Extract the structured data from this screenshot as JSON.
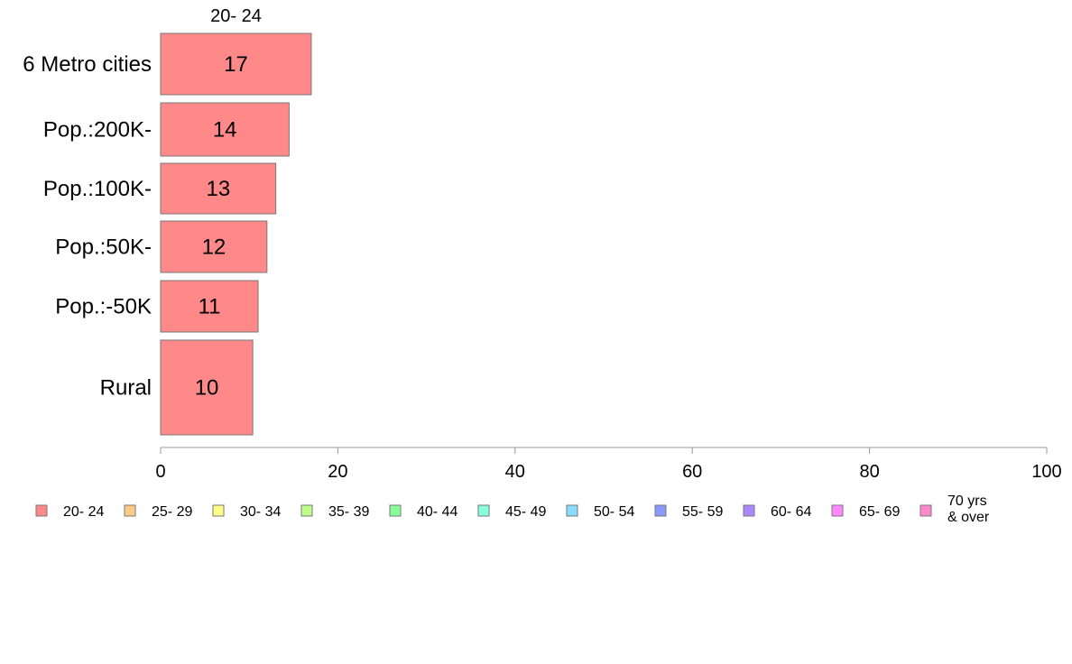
{
  "chart_data": {
    "type": "bar",
    "orientation": "horizontal",
    "stacked": true,
    "title": "",
    "xlabel": "",
    "ylabel": "",
    "xlim": [
      0,
      100
    ],
    "xticks": [
      "0",
      "20",
      "40",
      "60",
      "80",
      "100"
    ],
    "grid": false,
    "legend_position": "bottom",
    "categories": [
      "6 Metro cities",
      "Pop.:200K-",
      "Pop.:100K-",
      "Pop.:50K-",
      "Pop.:-50K",
      "Rural"
    ],
    "series": [
      {
        "name": "20- 24",
        "color": "#ff8888",
        "values": [
          17,
          14.5,
          13,
          12,
          11,
          10.4
        ],
        "labels": [
          "17",
          "14",
          "13",
          "12",
          "11",
          "10"
        ]
      }
    ],
    "series_title_above": "20- 24",
    "legend": [
      {
        "label": "20- 24",
        "color": "#ff8888"
      },
      {
        "label": "25- 29",
        "color": "#ffcc88"
      },
      {
        "label": "30- 34",
        "color": "#ffff88"
      },
      {
        "label": "35- 39",
        "color": "#bbff88"
      },
      {
        "label": "40- 44",
        "color": "#88ff99"
      },
      {
        "label": "45- 49",
        "color": "#88ffdd"
      },
      {
        "label": "50- 54",
        "color": "#88ddff"
      },
      {
        "label": "55- 59",
        "color": "#8899ff"
      },
      {
        "label": "60- 64",
        "color": "#aa88ff"
      },
      {
        "label": "65- 69",
        "color": "#ff88ff"
      },
      {
        "label": "70 yrs\n& over",
        "color": "#ff88cc"
      }
    ]
  }
}
